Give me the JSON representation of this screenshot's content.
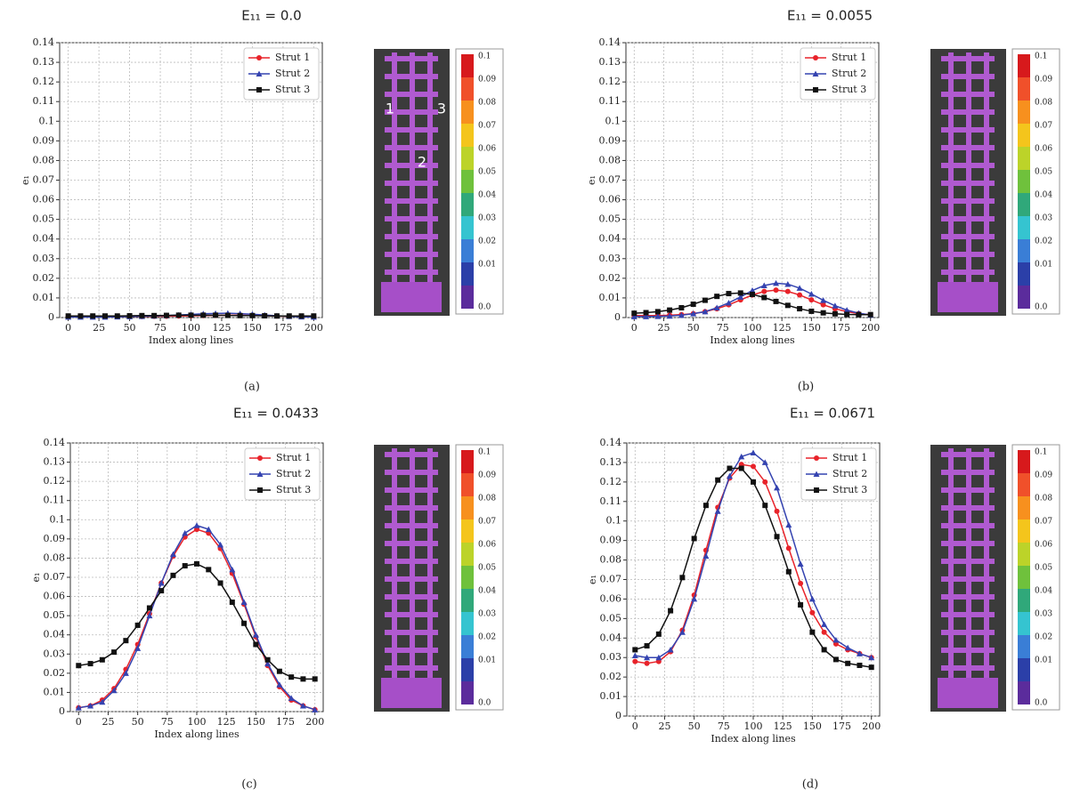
{
  "chart_data": [
    {
      "type": "line",
      "title": "E₁₁ = 0.0",
      "caption": "(a)",
      "xlabel": "Index along lines",
      "ylabel": "e₁",
      "x": [
        0,
        10,
        20,
        30,
        40,
        50,
        60,
        70,
        80,
        90,
        100,
        110,
        120,
        130,
        140,
        150,
        160,
        170,
        180,
        190,
        200
      ],
      "xlim": [
        -7,
        207
      ],
      "xticks": [
        0,
        25,
        50,
        75,
        100,
        125,
        150,
        175,
        200
      ],
      "ylim": [
        0,
        0.14
      ],
      "yticks": [
        0,
        0.01,
        0.02,
        0.03,
        0.04,
        0.05,
        0.06,
        0.07,
        0.08,
        0.09,
        0.1,
        0.11,
        0.12,
        0.13,
        0.14
      ],
      "grid": true,
      "legend": "upper right",
      "series": [
        {
          "name": "Strut 1",
          "color": "#e8232a",
          "marker": "circle",
          "values": [
            0.0005,
            0.0005,
            0.0005,
            0.0005,
            0.0005,
            0.0005,
            0.0005,
            0.0006,
            0.0007,
            0.0008,
            0.0009,
            0.001,
            0.0011,
            0.0012,
            0.0012,
            0.0011,
            0.001,
            0.0008,
            0.0006,
            0.0005,
            0.0005
          ]
        },
        {
          "name": "Strut 2",
          "color": "#3443b0",
          "marker": "triangle",
          "values": [
            0.0003,
            0.0003,
            0.0003,
            0.0003,
            0.0004,
            0.0005,
            0.0006,
            0.0008,
            0.001,
            0.0013,
            0.0016,
            0.0019,
            0.0021,
            0.0022,
            0.002,
            0.0017,
            0.0013,
            0.0009,
            0.0006,
            0.0004,
            0.0003
          ]
        },
        {
          "name": "Strut 3",
          "color": "#111111",
          "marker": "square",
          "values": [
            0.0008,
            0.0008,
            0.0008,
            0.0008,
            0.0008,
            0.0009,
            0.001,
            0.001,
            0.0011,
            0.0012,
            0.0012,
            0.0012,
            0.0012,
            0.0011,
            0.001,
            0.001,
            0.0009,
            0.0008,
            0.0008,
            0.0008,
            0.0008
          ]
        }
      ],
      "colorbar": [
        "0.1",
        "0.09",
        "0.08",
        "0.07",
        "0.06",
        "0.05",
        "0.04",
        "0.03",
        "0.02",
        "0.01",
        "0.0"
      ],
      "image_labels": [
        "1",
        "2",
        "3"
      ]
    },
    {
      "type": "line",
      "title": "E₁₁ = 0.0055",
      "caption": "(b)",
      "xlabel": "Index along lines",
      "ylabel": "e₁",
      "x": [
        0,
        10,
        20,
        30,
        40,
        50,
        60,
        70,
        80,
        90,
        100,
        110,
        120,
        130,
        140,
        150,
        160,
        170,
        180,
        190,
        200
      ],
      "xlim": [
        -7,
        207
      ],
      "xticks": [
        0,
        25,
        50,
        75,
        100,
        125,
        150,
        175,
        200
      ],
      "ylim": [
        0,
        0.14
      ],
      "yticks": [
        0,
        0.01,
        0.02,
        0.03,
        0.04,
        0.05,
        0.06,
        0.07,
        0.08,
        0.09,
        0.1,
        0.11,
        0.12,
        0.13,
        0.14
      ],
      "grid": true,
      "legend": "upper right",
      "series": [
        {
          "name": "Strut 1",
          "color": "#e8232a",
          "marker": "circle",
          "values": [
            0.001,
            0.001,
            0.001,
            0.0012,
            0.0015,
            0.002,
            0.003,
            0.0045,
            0.0065,
            0.009,
            0.0115,
            0.0133,
            0.014,
            0.0133,
            0.0115,
            0.009,
            0.0065,
            0.0045,
            0.003,
            0.002,
            0.0015
          ]
        },
        {
          "name": "Strut 2",
          "color": "#3443b0",
          "marker": "triangle",
          "values": [
            0.0005,
            0.0005,
            0.0006,
            0.0008,
            0.0012,
            0.002,
            0.003,
            0.005,
            0.0075,
            0.0105,
            0.0138,
            0.0163,
            0.0175,
            0.017,
            0.015,
            0.012,
            0.0088,
            0.006,
            0.0038,
            0.0022,
            0.0013
          ]
        },
        {
          "name": "Strut 3",
          "color": "#111111",
          "marker": "square",
          "values": [
            0.0022,
            0.0025,
            0.003,
            0.0038,
            0.005,
            0.0068,
            0.0088,
            0.0108,
            0.0122,
            0.0125,
            0.0118,
            0.0102,
            0.0082,
            0.0062,
            0.0045,
            0.0032,
            0.0024,
            0.0019,
            0.0016,
            0.0015,
            0.0015
          ]
        }
      ],
      "colorbar": [
        "0.1",
        "0.09",
        "0.08",
        "0.07",
        "0.06",
        "0.05",
        "0.04",
        "0.03",
        "0.02",
        "0.01",
        "0.0"
      ]
    },
    {
      "type": "line",
      "title": "E₁₁ = 0.0433",
      "caption": "(c)",
      "xlabel": "Index along lines",
      "ylabel": "e₁",
      "x": [
        0,
        10,
        20,
        30,
        40,
        50,
        60,
        70,
        80,
        90,
        100,
        110,
        120,
        130,
        140,
        150,
        160,
        170,
        180,
        190,
        200
      ],
      "xlim": [
        -7,
        207
      ],
      "xticks": [
        0,
        25,
        50,
        75,
        100,
        125,
        150,
        175,
        200
      ],
      "ylim": [
        0,
        0.14
      ],
      "yticks": [
        0,
        0.01,
        0.02,
        0.03,
        0.04,
        0.05,
        0.06,
        0.07,
        0.08,
        0.09,
        0.1,
        0.11,
        0.12,
        0.13,
        0.14
      ],
      "grid": true,
      "legend": "upper right",
      "series": [
        {
          "name": "Strut 1",
          "color": "#e8232a",
          "marker": "circle",
          "values": [
            0.002,
            0.003,
            0.006,
            0.012,
            0.022,
            0.035,
            0.051,
            0.067,
            0.081,
            0.091,
            0.095,
            0.093,
            0.085,
            0.072,
            0.056,
            0.039,
            0.024,
            0.013,
            0.006,
            0.003,
            0.001
          ]
        },
        {
          "name": "Strut 2",
          "color": "#3443b0",
          "marker": "triangle",
          "values": [
            0.002,
            0.003,
            0.005,
            0.011,
            0.02,
            0.033,
            0.05,
            0.067,
            0.082,
            0.093,
            0.097,
            0.095,
            0.087,
            0.074,
            0.057,
            0.04,
            0.025,
            0.014,
            0.007,
            0.003,
            0.001
          ]
        },
        {
          "name": "Strut 3",
          "color": "#111111",
          "marker": "square",
          "values": [
            0.024,
            0.025,
            0.027,
            0.031,
            0.037,
            0.045,
            0.054,
            0.063,
            0.071,
            0.076,
            0.077,
            0.074,
            0.067,
            0.057,
            0.046,
            0.035,
            0.027,
            0.021,
            0.018,
            0.017,
            0.017
          ]
        }
      ],
      "colorbar": [
        "0.1",
        "0.09",
        "0.08",
        "0.07",
        "0.06",
        "0.05",
        "0.04",
        "0.03",
        "0.02",
        "0.01",
        "0.0"
      ]
    },
    {
      "type": "line",
      "title": "E₁₁ = 0.0671",
      "caption": "(d)",
      "xlabel": "Index along lines",
      "ylabel": "e₁",
      "x": [
        0,
        10,
        20,
        30,
        40,
        50,
        60,
        70,
        80,
        90,
        100,
        110,
        120,
        130,
        140,
        150,
        160,
        170,
        180,
        190,
        200
      ],
      "xlim": [
        -7,
        207
      ],
      "xticks": [
        0,
        25,
        50,
        75,
        100,
        125,
        150,
        175,
        200
      ],
      "ylim": [
        0,
        0.14
      ],
      "yticks": [
        0,
        0.01,
        0.02,
        0.03,
        0.04,
        0.05,
        0.06,
        0.07,
        0.08,
        0.09,
        0.1,
        0.11,
        0.12,
        0.13,
        0.14
      ],
      "grid": true,
      "legend": "upper right",
      "series": [
        {
          "name": "Strut 1",
          "color": "#e8232a",
          "marker": "circle",
          "values": [
            0.028,
            0.027,
            0.028,
            0.033,
            0.044,
            0.062,
            0.085,
            0.107,
            0.122,
            0.129,
            0.128,
            0.12,
            0.105,
            0.086,
            0.068,
            0.053,
            0.043,
            0.037,
            0.034,
            0.032,
            0.03
          ]
        },
        {
          "name": "Strut 2",
          "color": "#3443b0",
          "marker": "triangle",
          "values": [
            0.031,
            0.03,
            0.03,
            0.034,
            0.043,
            0.06,
            0.082,
            0.105,
            0.123,
            0.133,
            0.135,
            0.13,
            0.117,
            0.098,
            0.078,
            0.06,
            0.047,
            0.039,
            0.035,
            0.032,
            0.03
          ]
        },
        {
          "name": "Strut 3",
          "color": "#111111",
          "marker": "square",
          "values": [
            0.034,
            0.036,
            0.042,
            0.054,
            0.071,
            0.091,
            0.108,
            0.121,
            0.127,
            0.127,
            0.12,
            0.108,
            0.092,
            0.074,
            0.057,
            0.043,
            0.034,
            0.029,
            0.027,
            0.026,
            0.025
          ]
        }
      ],
      "colorbar": [
        "0.1",
        "0.09",
        "0.08",
        "0.07",
        "0.06",
        "0.05",
        "0.04",
        "0.03",
        "0.02",
        "0.01",
        "0.0"
      ]
    }
  ]
}
